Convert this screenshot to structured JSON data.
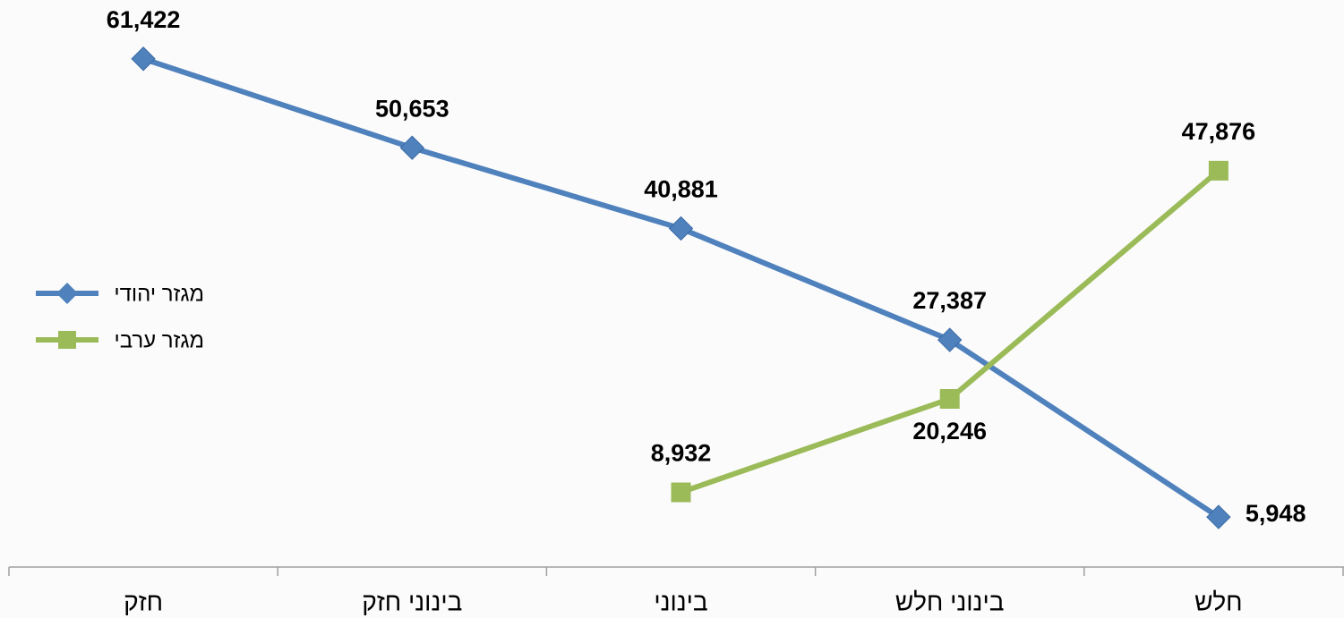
{
  "chart_data": {
    "type": "line",
    "categories": [
      "חזק",
      "בינוני חזק",
      "בינוני",
      "בינוני חלש",
      "חלש"
    ],
    "ylim": [
      0,
      68000
    ],
    "series": [
      {
        "name": "מגזר יהודי",
        "color": "#4f81bd",
        "marker": "diamond",
        "values": [
          61422,
          50653,
          40881,
          27387,
          5948
        ],
        "value_labels": [
          "61,422",
          "50,653",
          "40,881",
          "27,387",
          "5,948"
        ]
      },
      {
        "name": "מגזר ערבי",
        "color": "#9bbb59",
        "marker": "square",
        "values": [
          null,
          null,
          8932,
          20246,
          47876
        ],
        "value_labels": [
          null,
          null,
          "8,932",
          "20,246",
          "47,876"
        ]
      }
    ],
    "legend": "left"
  }
}
